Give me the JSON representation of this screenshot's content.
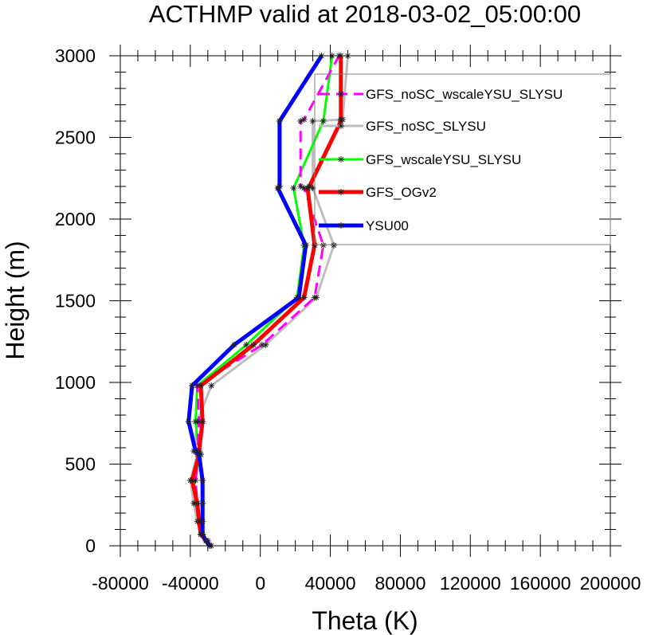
{
  "chart_data": {
    "type": "line",
    "title": "ACTHMP valid at 2018-03-02_05:00:00",
    "xlabel": "Theta (K)",
    "ylabel": "Height (m)",
    "xlim": [
      -80000,
      200000
    ],
    "ylim": [
      0,
      3000
    ],
    "xticks": [
      -80000,
      -40000,
      0,
      40000,
      80000,
      120000,
      160000,
      200000
    ],
    "xtick_labels": [
      "-80000",
      "-40000",
      "0",
      "40000",
      "80000",
      "120000",
      "160000",
      "200000"
    ],
    "yticks": [
      0,
      500,
      1000,
      1500,
      2000,
      2500,
      3000
    ],
    "ytick_labels": [
      "0",
      "500",
      "1000",
      "1500",
      "2000",
      "2500",
      "3000"
    ],
    "grid": false,
    "legend_position": "top-right",
    "series": [
      {
        "name": "GFS_noSC_wscaleYSU_SLYSU",
        "color": "#ff00ff",
        "dash": "dashed",
        "x": [
          -28000,
          -30000,
          -33000,
          -35000,
          -36000,
          -37000,
          -35000,
          -36000,
          -35000,
          -36000,
          1000,
          31000,
          36000,
          25000,
          23000,
          23000,
          25000,
          45000
        ],
        "y": [
          0,
          30,
          70,
          150,
          260,
          400,
          560,
          580,
          760,
          980,
          1230,
          1520,
          1840,
          2190,
          2200,
          2600,
          2610,
          3000
        ]
      },
      {
        "name": "GFS_noSC_SLYSU",
        "color": "#bebebe",
        "dash": "solid",
        "x": [
          -29000,
          -31000,
          -34000,
          -36000,
          -38000,
          -40000,
          -36000,
          -38000,
          -36000,
          -28000,
          3000,
          32000,
          42000,
          30000,
          30000,
          47000,
          50000
        ],
        "y": [
          0,
          30,
          70,
          150,
          260,
          400,
          560,
          580,
          760,
          980,
          1230,
          1520,
          1840,
          2190,
          2600,
          2610,
          3000
        ]
      },
      {
        "name": "GFS_wscaleYSU_SLYSU",
        "color": "#00ff00",
        "dash": "solid",
        "x": [
          -29000,
          -31000,
          -34000,
          -35000,
          -37000,
          -38000,
          -34000,
          -35000,
          -37000,
          -36000,
          -8000,
          21000,
          25000,
          19000,
          36000,
          41000
        ],
        "y": [
          0,
          30,
          70,
          150,
          260,
          400,
          560,
          580,
          760,
          980,
          1230,
          1520,
          1840,
          2190,
          2600,
          3000
        ]
      },
      {
        "name": "GFS_OGv2",
        "color": "#ff0000",
        "dash": "solid",
        "x": [
          -29000,
          -31000,
          -34000,
          -35000,
          -36000,
          -39000,
          -35000,
          -35000,
          -33000,
          -34000,
          -4000,
          25000,
          31000,
          27000,
          28000,
          46000,
          46000,
          46000
        ],
        "y": [
          0,
          30,
          70,
          150,
          260,
          400,
          560,
          580,
          760,
          980,
          1230,
          1520,
          1840,
          2190,
          2200,
          2600,
          2610,
          3000
        ]
      },
      {
        "name": "YSU00",
        "color": "#0000ff",
        "dash": "solid",
        "x": [
          -29000,
          -31000,
          -33000,
          -33000,
          -33000,
          -33000,
          -35000,
          -37000,
          -41000,
          -39000,
          -15000,
          22000,
          26000,
          10000,
          11000,
          11000,
          35000
        ],
        "y": [
          0,
          30,
          70,
          150,
          260,
          400,
          560,
          580,
          760,
          980,
          1230,
          1520,
          1840,
          2190,
          2200,
          2600,
          3000
        ]
      }
    ]
  }
}
